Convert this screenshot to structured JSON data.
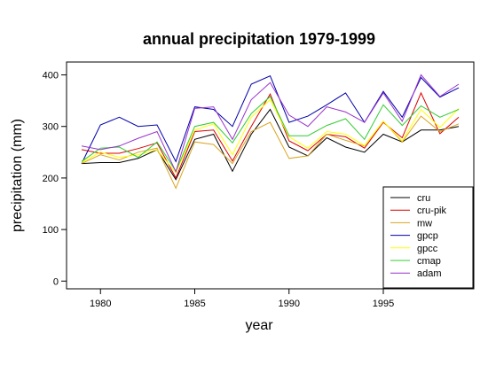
{
  "chart_data": {
    "type": "line",
    "title": "annual precipitation 1979-1999",
    "xlabel": "year",
    "ylabel": "precipitation (mm)",
    "xlim": [
      1978.2,
      1999.8
    ],
    "ylim": [
      -15,
      425
    ],
    "x_ticks": [
      1980,
      1985,
      1990,
      1995
    ],
    "y_ticks": [
      0,
      100,
      200,
      300,
      400
    ],
    "grid": false,
    "legend_position": "bottom-right",
    "x": [
      1979,
      1980,
      1981,
      1982,
      1983,
      1984,
      1985,
      1986,
      1987,
      1988,
      1989,
      1990,
      1991,
      1992,
      1993,
      1994,
      1995,
      1996,
      1997,
      1998,
      1999
    ],
    "series": [
      {
        "name": "cru",
        "color": "#000000",
        "values": [
          228,
          230,
          230,
          238,
          255,
          197,
          275,
          285,
          213,
          285,
          333,
          260,
          243,
          278,
          260,
          250,
          285,
          270,
          293,
          293,
          300
        ]
      },
      {
        "name": "cru-pik",
        "color": "#dd0000",
        "values": [
          255,
          248,
          248,
          257,
          268,
          200,
          290,
          293,
          233,
          300,
          363,
          272,
          253,
          285,
          280,
          258,
          308,
          278,
          365,
          286,
          318
        ]
      },
      {
        "name": "mw",
        "color": "#daa520",
        "values": [
          228,
          245,
          235,
          250,
          258,
          180,
          270,
          265,
          228,
          290,
          308,
          238,
          243,
          285,
          273,
          262,
          310,
          270,
          320,
          290,
          305
        ]
      },
      {
        "name": "gpcp",
        "color": "#0000aa",
        "values": [
          228,
          303,
          318,
          300,
          303,
          232,
          338,
          333,
          300,
          382,
          398,
          308,
          320,
          342,
          365,
          308,
          368,
          318,
          395,
          357,
          375
        ]
      },
      {
        "name": "gpcc",
        "color": "#ffff00",
        "values": [
          230,
          250,
          240,
          245,
          255,
          210,
          293,
          305,
          245,
          318,
          352,
          280,
          258,
          290,
          285,
          263,
          310,
          272,
          333,
          298,
          335
        ]
      },
      {
        "name": "cmap",
        "color": "#33cc33",
        "values": [
          232,
          258,
          260,
          240,
          270,
          213,
          300,
          308,
          268,
          325,
          358,
          282,
          282,
          302,
          315,
          275,
          342,
          302,
          340,
          318,
          333
        ]
      },
      {
        "name": "adam",
        "color": "#9933cc",
        "values": [
          262,
          255,
          262,
          277,
          290,
          212,
          335,
          338,
          275,
          352,
          385,
          322,
          300,
          338,
          328,
          308,
          365,
          310,
          400,
          358,
          382
        ]
      }
    ]
  }
}
